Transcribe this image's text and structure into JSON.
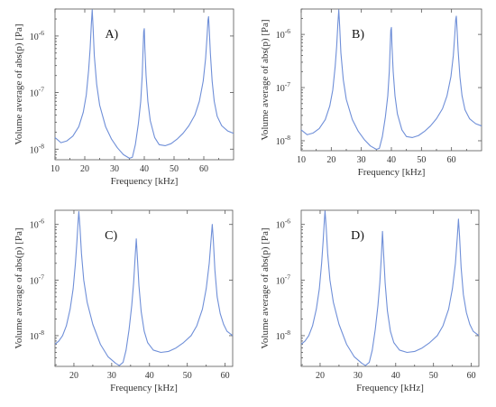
{
  "chart_data": [
    {
      "type": "line",
      "panel_label": "A)",
      "xlabel": "Frequency [kHz]",
      "ylabel": "Volume average of abs(p) [Pa]",
      "yscale": "log",
      "xlim": [
        10,
        70
      ],
      "ylim": [
        6.5e-09,
        3e-06
      ],
      "xticks": [
        10,
        20,
        30,
        40,
        50,
        60
      ],
      "yticks": [
        1e-08,
        1e-07,
        1e-06
      ],
      "ytick_labels": [
        "10",
        "10",
        "10"
      ],
      "ytick_exponents": [
        "-8",
        "-7",
        "-6"
      ],
      "color": "#6f8fd8",
      "series": [
        {
          "x": [
            10,
            12,
            14,
            16,
            18,
            19.5,
            20.5,
            21.3,
            21.8,
            22.2,
            22.5,
            22.8,
            23.2,
            24,
            25,
            27,
            29,
            31,
            33,
            35,
            36,
            37,
            38,
            38.8,
            39.3,
            39.6,
            39.8,
            40.0,
            40.2,
            40.6,
            41.2,
            42,
            43.5,
            45,
            47,
            49,
            51,
            53,
            55,
            57,
            58.5,
            59.8,
            60.6,
            61.1,
            61.4,
            61.6,
            61.8,
            62.2,
            62.8,
            63.5,
            64.5,
            66,
            68,
            70
          ],
          "y": [
            1.6e-08,
            1.3e-08,
            1.4e-08,
            1.7e-08,
            2.5e-08,
            4.5e-08,
            9e-08,
            2.5e-07,
            6e-07,
            1.6e-06,
            2.9e-06,
            1.4e-06,
            4.5e-07,
            1.4e-07,
            6e-08,
            2.5e-08,
            1.5e-08,
            1.05e-08,
            8e-09,
            6.9e-09,
            7.2e-09,
            1.2e-08,
            2.8e-08,
            7e-08,
            2e-07,
            6e-07,
            1.2e-06,
            1.35e-06,
            6e-07,
            2e-07,
            7e-08,
            3.2e-08,
            1.6e-08,
            1.2e-08,
            1.15e-08,
            1.25e-08,
            1.5e-08,
            1.9e-08,
            2.6e-08,
            4e-08,
            7e-08,
            1.6e-07,
            4e-07,
            1e-06,
            1.9e-06,
            2.2e-06,
            1.4e-06,
            5e-07,
            1.6e-07,
            7e-08,
            3.8e-08,
            2.6e-08,
            2.1e-08,
            1.9e-08
          ]
        }
      ]
    },
    {
      "type": "line",
      "panel_label": "B)",
      "xlabel": "Frequency [kHz]",
      "ylabel": "Volume average of abs(p) [Pa]",
      "yscale": "log",
      "xlim": [
        10,
        70
      ],
      "ylim": [
        6.5e-09,
        3e-06
      ],
      "xticks": [
        10,
        20,
        30,
        40,
        50,
        60
      ],
      "yticks": [
        1e-08,
        1e-07,
        1e-06
      ],
      "ytick_labels": [
        "10",
        "10",
        "10"
      ],
      "ytick_exponents": [
        "-8",
        "-7",
        "-6"
      ],
      "color": "#6f8fd8",
      "series": [
        {
          "x": [
            10,
            12,
            14,
            16,
            18,
            19.5,
            20.5,
            21.3,
            21.8,
            22.2,
            22.5,
            22.8,
            23.2,
            24,
            25,
            27,
            29,
            31,
            33,
            35,
            36,
            37,
            38,
            38.8,
            39.3,
            39.6,
            39.8,
            40.0,
            40.2,
            40.6,
            41.2,
            42,
            43.5,
            45,
            47,
            49,
            51,
            53,
            55,
            57,
            58.5,
            59.8,
            60.6,
            61.1,
            61.4,
            61.6,
            61.8,
            62.2,
            62.8,
            63.5,
            64.5,
            66,
            68,
            70
          ],
          "y": [
            1.6e-08,
            1.3e-08,
            1.4e-08,
            1.7e-08,
            2.5e-08,
            4.5e-08,
            9e-08,
            2.5e-07,
            6e-07,
            1.6e-06,
            2.9e-06,
            1.4e-06,
            4.5e-07,
            1.4e-07,
            6e-08,
            2.5e-08,
            1.5e-08,
            1.05e-08,
            8e-09,
            6.9e-09,
            7.2e-09,
            1.2e-08,
            2.8e-08,
            7e-08,
            2e-07,
            6e-07,
            1.2e-06,
            1.35e-06,
            6e-07,
            2e-07,
            7e-08,
            3.2e-08,
            1.6e-08,
            1.2e-08,
            1.15e-08,
            1.25e-08,
            1.5e-08,
            1.9e-08,
            2.6e-08,
            4e-08,
            7e-08,
            1.6e-07,
            4e-07,
            1e-06,
            1.9e-06,
            2.2e-06,
            1.4e-06,
            5e-07,
            1.6e-07,
            7e-08,
            3.8e-08,
            2.6e-08,
            2.1e-08,
            1.9e-08
          ]
        }
      ]
    },
    {
      "type": "line",
      "panel_label": "C)",
      "xlabel": "Frequency [kHz]",
      "ylabel": "Volume average of abs(p) [Pa]",
      "yscale": "log",
      "xlim": [
        15,
        62
      ],
      "ylim": [
        2.8e-09,
        1.8e-06
      ],
      "xticks": [
        20,
        30,
        40,
        50,
        60
      ],
      "yticks": [
        1e-08,
        1e-07,
        1e-06
      ],
      "ytick_labels": [
        "10",
        "10",
        "10"
      ],
      "ytick_exponents": [
        "-8",
        "-7",
        "-6"
      ],
      "color": "#6f8fd8",
      "series": [
        {
          "x": [
            15,
            16,
            17,
            18,
            19,
            19.8,
            20.4,
            20.8,
            21.1,
            21.3,
            21.6,
            22,
            22.6,
            23.5,
            25,
            27,
            29,
            31,
            32,
            33,
            33.8,
            34.6,
            35.3,
            35.8,
            36.2,
            36.5,
            36.8,
            37.2,
            37.8,
            38.6,
            39.5,
            41,
            43,
            45,
            47,
            49,
            51,
            52.5,
            54,
            55,
            55.8,
            56.3,
            56.6,
            56.9,
            57.3,
            57.9,
            58.7,
            59.6,
            60.5,
            62
          ],
          "y": [
            7e-09,
            8e-09,
            1e-08,
            1.5e-08,
            3e-08,
            7e-08,
            2e-07,
            5e-07,
            1.1e-06,
            1.7e-06,
            9e-07,
            3e-07,
            1e-07,
            4e-08,
            1.6e-08,
            7e-09,
            4.2e-09,
            3.2e-09,
            2.9e-09,
            3.3e-09,
            5.5e-09,
            1.3e-08,
            3.5e-08,
            9e-08,
            2.6e-07,
            5.5e-07,
            2.5e-07,
            8e-08,
            2.7e-08,
            1.2e-08,
            7.5e-09,
            5.5e-09,
            5e-09,
            5.2e-09,
            6e-09,
            7.5e-09,
            1e-08,
            1.5e-08,
            3e-08,
            7e-08,
            2e-07,
            5.5e-07,
            1e-06,
            5e-07,
            1.5e-07,
            5e-08,
            2.5e-08,
            1.6e-08,
            1.2e-08,
            1e-08
          ]
        }
      ]
    },
    {
      "type": "line",
      "panel_label": "D)",
      "xlabel": "Frequency [kHz]",
      "ylabel": "Volume average of abs(p) [Pa]",
      "yscale": "log",
      "xlim": [
        15,
        62
      ],
      "ylim": [
        2.8e-09,
        1.8e-06
      ],
      "xticks": [
        20,
        30,
        40,
        50,
        60
      ],
      "yticks": [
        1e-08,
        1e-07,
        1e-06
      ],
      "ytick_labels": [
        "10",
        "10",
        "10"
      ],
      "ytick_exponents": [
        "-8",
        "-7",
        "-6"
      ],
      "color": "#6f8fd8",
      "series": [
        {
          "x": [
            15,
            16,
            17,
            18,
            19,
            19.8,
            20.4,
            20.8,
            21.1,
            21.3,
            21.6,
            22,
            22.6,
            23.5,
            25,
            27,
            29,
            31,
            32,
            33,
            33.8,
            34.6,
            35.3,
            35.8,
            36.2,
            36.5,
            36.8,
            37.2,
            37.8,
            38.6,
            39.5,
            41,
            43,
            45,
            47,
            49,
            51,
            52.5,
            54,
            55,
            55.8,
            56.3,
            56.6,
            56.9,
            57.3,
            57.9,
            58.7,
            59.6,
            60.5,
            62
          ],
          "y": [
            7e-09,
            8e-09,
            1e-08,
            1.5e-08,
            3e-08,
            7e-08,
            2e-07,
            5e-07,
            1.1e-06,
            1.75e-06,
            9e-07,
            3e-07,
            1e-07,
            4e-08,
            1.6e-08,
            7e-09,
            4.2e-09,
            3.2e-09,
            2.9e-09,
            3.3e-09,
            5.5e-09,
            1.3e-08,
            3.5e-08,
            9e-08,
            2.6e-07,
            7.5e-07,
            3e-07,
            9e-08,
            2.8e-08,
            1.2e-08,
            7.5e-09,
            5.5e-09,
            5e-09,
            5.2e-09,
            6e-09,
            7.5e-09,
            1e-08,
            1.5e-08,
            3e-08,
            7e-08,
            2e-07,
            6e-07,
            1.25e-06,
            6e-07,
            1.7e-07,
            5.5e-08,
            2.6e-08,
            1.6e-08,
            1.2e-08,
            1e-08
          ]
        }
      ]
    }
  ]
}
